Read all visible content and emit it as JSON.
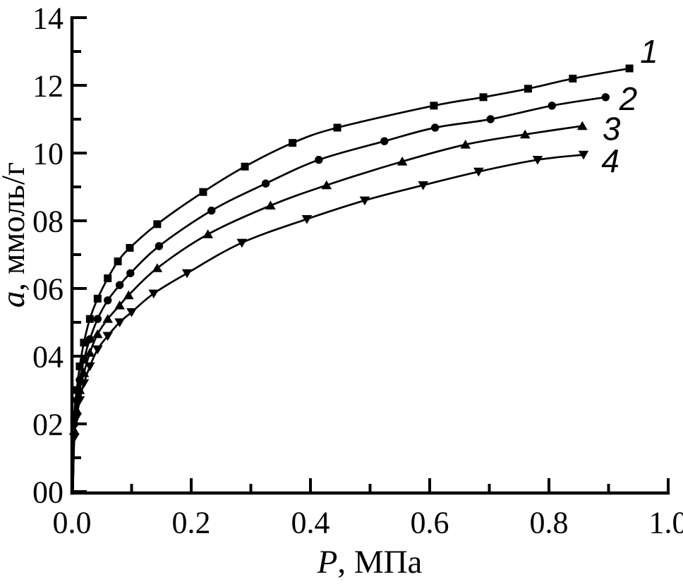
{
  "figure": {
    "background": "#ffffff",
    "ink_color": "#000000"
  },
  "chart_data": {
    "type": "line",
    "title": "",
    "xlabel": {
      "italic_part": "P",
      "rest": ", МПа"
    },
    "ylabel": {
      "italic_part": "a",
      "rest": ", ммоль/г"
    },
    "xlim": [
      0.0,
      1.0
    ],
    "ylim": [
      0,
      14
    ],
    "grid": false,
    "legend_position": "curve-number annotations at right ends of lines",
    "x_ticks": {
      "major_values": [
        0.0,
        0.2,
        0.4,
        0.6,
        0.8,
        1.0
      ],
      "major_labels": [
        "0.0",
        "0.2",
        "0.4",
        "0.6",
        "0.8",
        "1.0"
      ],
      "minor_values": [
        0.1,
        0.3,
        0.5,
        0.7,
        0.9
      ]
    },
    "y_ticks": {
      "major_values": [
        0,
        2,
        4,
        6,
        8,
        10,
        12,
        14
      ],
      "major_labels": [
        "00",
        "02",
        "04",
        "06",
        "08",
        "10",
        "12",
        "14"
      ],
      "minor_values": [
        1,
        3,
        5,
        7,
        9,
        11,
        13
      ]
    },
    "series": [
      {
        "name": "curve-1",
        "annotation": "1",
        "marker": "square",
        "color": "#000000",
        "line_start": [
          0.0015,
          0.0
        ],
        "points": [
          [
            0.004,
            2.2
          ],
          [
            0.008,
            3.0
          ],
          [
            0.013,
            3.7
          ],
          [
            0.02,
            4.4
          ],
          [
            0.03,
            5.1
          ],
          [
            0.043,
            5.7
          ],
          [
            0.06,
            6.3
          ],
          [
            0.077,
            6.8
          ],
          [
            0.097,
            7.2
          ],
          [
            0.143,
            7.9
          ],
          [
            0.22,
            8.85
          ],
          [
            0.29,
            9.6
          ],
          [
            0.37,
            10.3
          ],
          [
            0.445,
            10.75
          ],
          [
            0.607,
            11.4
          ],
          [
            0.69,
            11.65
          ],
          [
            0.765,
            11.9
          ],
          [
            0.84,
            12.2
          ],
          [
            0.935,
            12.5
          ]
        ]
      },
      {
        "name": "curve-2",
        "annotation": "2",
        "marker": "circle",
        "color": "#000000",
        "line_start": [
          0.0015,
          0.0
        ],
        "points": [
          [
            0.004,
            2.0
          ],
          [
            0.008,
            2.7
          ],
          [
            0.013,
            3.3
          ],
          [
            0.02,
            3.9
          ],
          [
            0.03,
            4.5
          ],
          [
            0.043,
            5.1
          ],
          [
            0.06,
            5.65
          ],
          [
            0.08,
            6.1
          ],
          [
            0.098,
            6.45
          ],
          [
            0.146,
            7.25
          ],
          [
            0.234,
            8.3
          ],
          [
            0.325,
            9.1
          ],
          [
            0.414,
            9.8
          ],
          [
            0.524,
            10.35
          ],
          [
            0.609,
            10.75
          ],
          [
            0.702,
            11.0
          ],
          [
            0.805,
            11.4
          ],
          [
            0.895,
            11.65
          ]
        ]
      },
      {
        "name": "curve-3",
        "annotation": "3",
        "marker": "triangle-up",
        "color": "#000000",
        "line_start": [
          0.0015,
          0.0
        ],
        "points": [
          [
            0.004,
            1.8
          ],
          [
            0.008,
            2.4
          ],
          [
            0.013,
            3.0
          ],
          [
            0.02,
            3.5
          ],
          [
            0.03,
            4.1
          ],
          [
            0.043,
            4.65
          ],
          [
            0.06,
            5.1
          ],
          [
            0.08,
            5.5
          ],
          [
            0.095,
            5.8
          ],
          [
            0.143,
            6.6
          ],
          [
            0.228,
            7.6
          ],
          [
            0.333,
            8.45
          ],
          [
            0.427,
            9.05
          ],
          [
            0.554,
            9.75
          ],
          [
            0.66,
            10.25
          ],
          [
            0.76,
            10.55
          ],
          [
            0.856,
            10.8
          ]
        ]
      },
      {
        "name": "curve-4",
        "annotation": "4",
        "marker": "triangle-down",
        "color": "#000000",
        "line_start": [
          0.0015,
          0.0
        ],
        "points": [
          [
            0.004,
            1.6
          ],
          [
            0.008,
            2.2
          ],
          [
            0.013,
            2.7
          ],
          [
            0.02,
            3.2
          ],
          [
            0.03,
            3.7
          ],
          [
            0.043,
            4.2
          ],
          [
            0.06,
            4.6
          ],
          [
            0.08,
            5.0
          ],
          [
            0.1,
            5.3
          ],
          [
            0.137,
            5.85
          ],
          [
            0.193,
            6.45
          ],
          [
            0.285,
            7.35
          ],
          [
            0.394,
            8.05
          ],
          [
            0.491,
            8.6
          ],
          [
            0.589,
            9.05
          ],
          [
            0.682,
            9.45
          ],
          [
            0.781,
            9.8
          ],
          [
            0.858,
            9.95
          ]
        ]
      }
    ],
    "annotations": [
      {
        "text": "1",
        "P": 0.968,
        "a": 13.0
      },
      {
        "text": "2",
        "P": 0.933,
        "a": 11.6
      },
      {
        "text": "3",
        "P": 0.905,
        "a": 10.72
      },
      {
        "text": "4",
        "P": 0.903,
        "a": 9.77
      }
    ]
  }
}
